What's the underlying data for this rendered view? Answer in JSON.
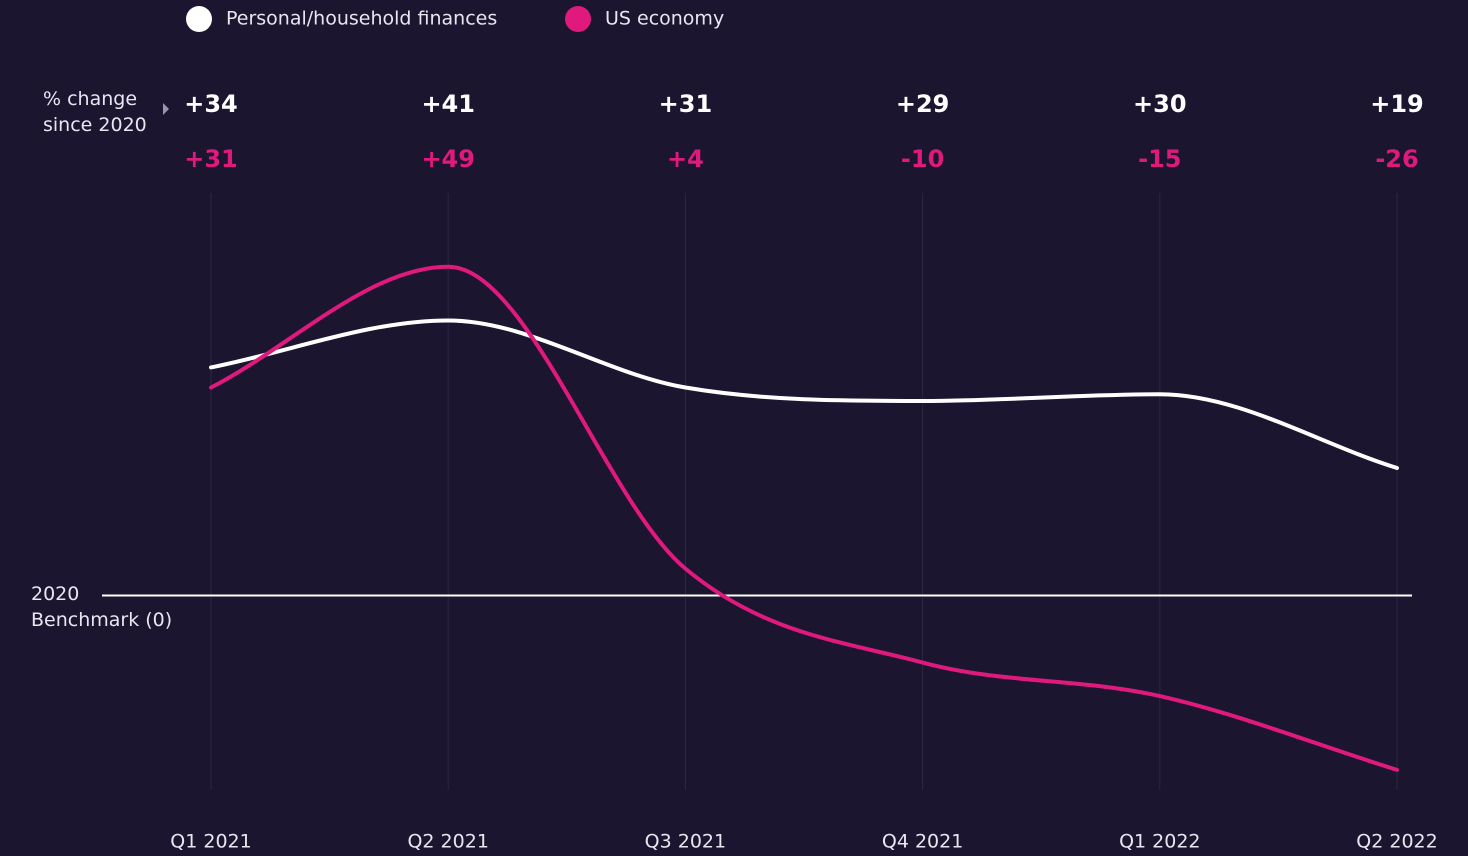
{
  "chart_data": {
    "type": "line",
    "header": "% change since 2020",
    "categories": [
      "Q1 2021",
      "Q2 2021",
      "Q3 2021",
      "Q4 2021",
      "Q1 2022",
      "Q2 2022"
    ],
    "series": [
      {
        "name": "Personal/household finances",
        "color": "#ffffff",
        "values": [
          34,
          41,
          31,
          29,
          30,
          19
        ],
        "value_labels": [
          "+34",
          "+41",
          "+31",
          "+29",
          "+30",
          "+19"
        ]
      },
      {
        "name": "US economy",
        "color": "#e0197d",
        "values": [
          31,
          49,
          4,
          -10,
          -15,
          -26
        ],
        "value_labels": [
          "+31",
          "+49",
          "+4",
          "-10",
          "-15",
          "-26"
        ]
      }
    ],
    "ylim": [
      -29,
      60
    ],
    "yticks": [
      {
        "value": 0,
        "label": "2020 Benchmark (0)"
      }
    ],
    "smooth": true,
    "legend": "top"
  }
}
